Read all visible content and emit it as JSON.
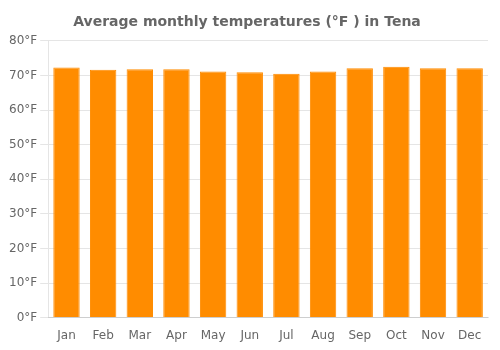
{
  "chart_data": {
    "type": "bar",
    "title": "Average monthly temperatures (°F ) in Tena",
    "categories": [
      "Jan",
      "Feb",
      "Mar",
      "Apr",
      "May",
      "Jun",
      "Jul",
      "Aug",
      "Sep",
      "Oct",
      "Nov",
      "Dec"
    ],
    "values": [
      72.3,
      71.6,
      71.8,
      71.8,
      71.1,
      70.9,
      70.5,
      71.1,
      72.1,
      72.5,
      72.1,
      72.1
    ],
    "color": "#FF8C00",
    "ylim": [
      0,
      80
    ],
    "yticks": [
      {
        "value": 0,
        "label": "0°F"
      },
      {
        "value": 10,
        "label": "10°F"
      },
      {
        "value": 20,
        "label": "20°F"
      },
      {
        "value": 30,
        "label": "30°F"
      },
      {
        "value": 40,
        "label": "40°F"
      },
      {
        "value": 50,
        "label": "50°F"
      },
      {
        "value": 60,
        "label": "60°F"
      },
      {
        "value": 70,
        "label": "70°F"
      },
      {
        "value": 80,
        "label": "80°F"
      }
    ],
    "grid": true
  }
}
